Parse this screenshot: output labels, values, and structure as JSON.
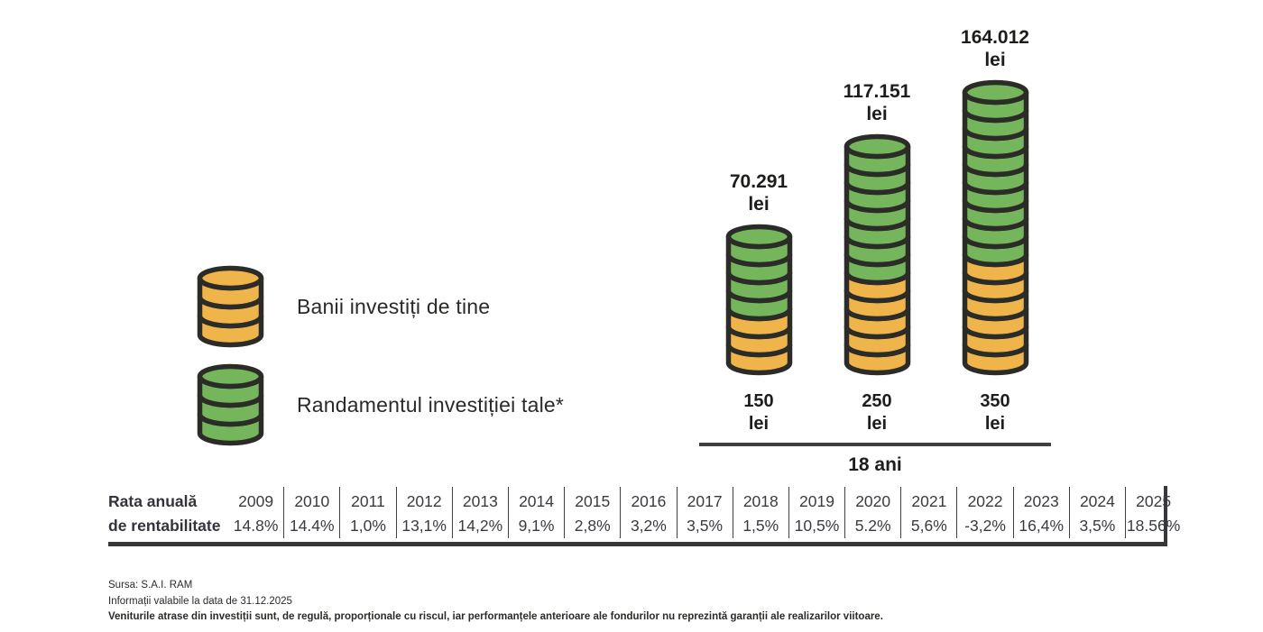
{
  "colors": {
    "coin_yellow": "#EFB54B",
    "coin_green": "#75B55B",
    "coin_outline": "#2B2B28",
    "line_dark": "#3F3F3F"
  },
  "legend": {
    "items": [
      {
        "label": "Banii investiți de tine",
        "color_key": "coin_yellow"
      },
      {
        "label": "Randamentul investiției tale*",
        "color_key": "coin_green"
      }
    ]
  },
  "chart_data": {
    "type": "bar",
    "title": "",
    "unit": "lei",
    "period_label": "18 ani",
    "legend": [
      "Banii investiți de tine",
      "Randamentul investiției tale*"
    ],
    "stacks": [
      {
        "monthly_investment": "150",
        "monthly_unit": "lei",
        "total_value": "70.291",
        "total_unit": "lei",
        "green_coins": 4,
        "yellow_coins": 3
      },
      {
        "monthly_investment": "250",
        "monthly_unit": "lei",
        "total_value": "117.151",
        "total_unit": "lei",
        "green_coins": 7,
        "yellow_coins": 5
      },
      {
        "monthly_investment": "350",
        "monthly_unit": "lei",
        "total_value": "164.012",
        "total_unit": "lei",
        "green_coins": 9,
        "yellow_coins": 6
      }
    ],
    "annual_returns": {
      "row_label_lines": [
        "Rata anuală",
        "de rentabilitate"
      ],
      "years": [
        "2009",
        "2010",
        "2011",
        "2012",
        "2013",
        "2014",
        "2015",
        "2016",
        "2017",
        "2018",
        "2019",
        "2020",
        "2021",
        "2022",
        "2023",
        "2024",
        "2025"
      ],
      "values": [
        "14.8%",
        "14.4%",
        "1,0%",
        "13,1%",
        "14,2%",
        "9,1%",
        "2,8%",
        "3,2%",
        "3,5%",
        "1,5%",
        "10,5%",
        "5.2%",
        "5,6%",
        "-3,2%",
        "16,4%",
        "3,5%",
        "18.56%"
      ]
    }
  },
  "footer": {
    "lines": [
      "Sursa: S.A.I. RAM",
      "Informații valabile la data de 31.12.2025",
      "Veniturile atrase din investiții sunt, de regulă, proporționale cu riscul, iar performanțele anterioare ale fondurilor nu reprezintă garanții ale realizarilor viitoare."
    ]
  }
}
